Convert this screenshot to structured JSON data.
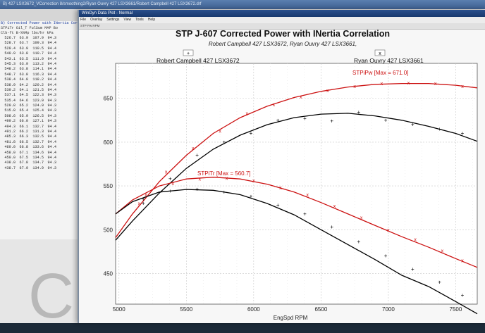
{
  "bg_window": {
    "title": "B) 427 LSX3672_VCorrection 8/smoothing2/Ryan Ouvry 427 LSX3661/Robert Campbell 427 LSX3672.drf",
    "table_header": "B) Corrected Power with INertia Corr",
    "table_subheader": "STPiTr Oil_T FulSum MAP Bo",
    "table_units": "Clb-ft B-%%Mp lbs/hr kPa",
    "rows": [
      [
        "526.7",
        "63.9",
        "107.9",
        "94.3"
      ],
      [
        "528.7",
        "63.7",
        "109.3",
        "94.4"
      ],
      [
        "529.4",
        "63.9",
        "110.5",
        "94.4"
      ],
      [
        "540.9",
        "63.8",
        "110.7",
        "94.4"
      ],
      [
        "543.1",
        "63.5",
        "111.9",
        "94.4"
      ],
      [
        "545.3",
        "63.9",
        "113.2",
        "94.4"
      ],
      [
        "548.2",
        "63.8",
        "114.1",
        "94.4"
      ],
      [
        "548.7",
        "63.8",
        "116.3",
        "94.4"
      ],
      [
        "538.4",
        "64.0",
        "118.2",
        "94.4"
      ],
      [
        "538.9",
        "64.2",
        "120.2",
        "94.4"
      ],
      [
        "539.2",
        "64.1",
        "121.5",
        "94.4"
      ],
      [
        "537.1",
        "64.5",
        "122.3",
        "94.3"
      ],
      [
        "535.4",
        "64.6",
        "123.9",
        "94.3"
      ],
      [
        "529.8",
        "65.2",
        "124.9",
        "94.3"
      ],
      [
        "515.8",
        "65.4",
        "125.4",
        "94.3"
      ],
      [
        "508.6",
        "65.9",
        "126.5",
        "94.3"
      ],
      [
        "499.2",
        "66.0",
        "127.1",
        "94.3"
      ],
      [
        "494.3",
        "66.1",
        "132.7",
        "94.4"
      ],
      [
        "491.2",
        "66.2",
        "131.3",
        "94.4"
      ],
      [
        "485.3",
        "66.3",
        "132.5",
        "94.4"
      ],
      [
        "481.8",
        "66.5",
        "132.7",
        "94.4"
      ],
      [
        "460.0",
        "66.8",
        "133.6",
        "94.4"
      ],
      [
        "458.0",
        "67.1",
        "134.6",
        "94.4"
      ],
      [
        "450.0",
        "67.5",
        "134.5",
        "94.4"
      ],
      [
        "438.0",
        "67.8",
        "134.7",
        "94.3"
      ],
      [
        "438.7",
        "67.9",
        "134.9",
        "94.3"
      ]
    ],
    "decor_glyph": "C"
  },
  "plot_window": {
    "title": "WinDyn Data Plot - Normal",
    "menu": [
      "File",
      "Overlay",
      "Settings",
      "View",
      "Tools",
      "Help"
    ],
    "toolbar": "STP Pw  RPM"
  },
  "chart_data": {
    "type": "line",
    "title": "STP J-607 Corrected Power with INertia Correlation",
    "subtitle": "Robert Campbell 427 LSX3672, Ryan Ouvry 427 LSX3661,",
    "xlabel": "EngSpd RPM",
    "ylabel": "",
    "xlim": [
      4975,
      7660
    ],
    "ylim": [
      415,
      690
    ],
    "x_ticks": [
      5000,
      5500,
      6000,
      6500,
      7000,
      7500
    ],
    "y_ticks": [
      450,
      500,
      550,
      600,
      650
    ],
    "grid": true,
    "legend": [
      {
        "name": "Robert Campbell 427 LSX3672",
        "marker": "+",
        "color": "#000000"
      },
      {
        "name": "Ryan Ouvry 427 LSX3661",
        "marker": "x",
        "color": "#000000"
      }
    ],
    "annotations": [
      {
        "text": "STPiPw [Max = 671.0]",
        "color": "#cc1111"
      },
      {
        "text": "STPiTr [Max = 560.7]",
        "color": "#cc1111"
      }
    ],
    "series": [
      {
        "color": "#cc1111",
        "x": [
          4975,
          5100,
          5300,
          5500,
          5700,
          5900,
          6100,
          6300,
          6500,
          6700,
          6900,
          7100,
          7300,
          7500,
          7660
        ],
        "values": [
          491,
          518,
          555,
          585,
          610,
          628,
          641,
          651,
          658,
          663,
          666,
          667,
          667,
          665,
          662
        ]
      },
      {
        "color": "#000000",
        "x": [
          4975,
          5100,
          5300,
          5500,
          5700,
          5900,
          6100,
          6300,
          6500,
          6700,
          6900,
          7100,
          7300,
          7500,
          7660
        ],
        "values": [
          488,
          510,
          542,
          570,
          592,
          608,
          620,
          628,
          632,
          633,
          630,
          625,
          618,
          610,
          601
        ]
      },
      {
        "color": "#cc1111",
        "x": [
          4975,
          5100,
          5300,
          5500,
          5700,
          5900,
          6100,
          6300,
          6500,
          6700,
          6900,
          7100,
          7300,
          7500,
          7660
        ],
        "values": [
          518,
          534,
          550,
          558,
          560,
          558,
          552,
          543,
          531,
          518,
          505,
          492,
          480,
          467,
          457
        ]
      },
      {
        "color": "#000000",
        "x": [
          4975,
          5100,
          5300,
          5500,
          5700,
          5900,
          6100,
          6300,
          6500,
          6700,
          6900,
          7100,
          7300,
          7500,
          7660
        ],
        "values": [
          518,
          532,
          543,
          546,
          545,
          540,
          530,
          517,
          500,
          483,
          466,
          448,
          435,
          418,
          404
        ]
      }
    ],
    "scatter_x": [
      {
        "color": "#cc1111",
        "x": [
          5150,
          5350,
          5550,
          5750,
          5950,
          6150,
          6350,
          6550,
          6750,
          6950,
          7150,
          7350,
          7550
        ],
        "y": [
          530,
          566,
          593,
          613,
          633,
          643,
          652,
          659,
          664,
          667,
          668,
          667,
          664
        ]
      },
      {
        "color": "#cc1111",
        "x": [
          5200,
          5400,
          5600,
          5800,
          6000,
          6200,
          6400,
          6600,
          6800,
          7000,
          7200,
          7400,
          7550
        ],
        "y": [
          540,
          553,
          558,
          559,
          556,
          548,
          540,
          527,
          514,
          500,
          489,
          476,
          465
        ]
      }
    ],
    "scatter_plus": [
      {
        "color": "#000000",
        "x": [
          5180,
          5380,
          5580,
          5780,
          5980,
          6180,
          6380,
          6580,
          6780,
          6980,
          7180,
          7380,
          7550
        ],
        "y": [
          530,
          558,
          585,
          600,
          610,
          625,
          627,
          624,
          634,
          625,
          620,
          615,
          610
        ]
      },
      {
        "color": "#000000",
        "x": [
          5180,
          5380,
          5580,
          5780,
          5980,
          6180,
          6380,
          6580,
          6780,
          6980,
          7180,
          7380,
          7550
        ],
        "y": [
          535,
          544,
          546,
          543,
          538,
          528,
          518,
          503,
          486,
          470,
          455,
          440,
          425
        ]
      }
    ]
  }
}
